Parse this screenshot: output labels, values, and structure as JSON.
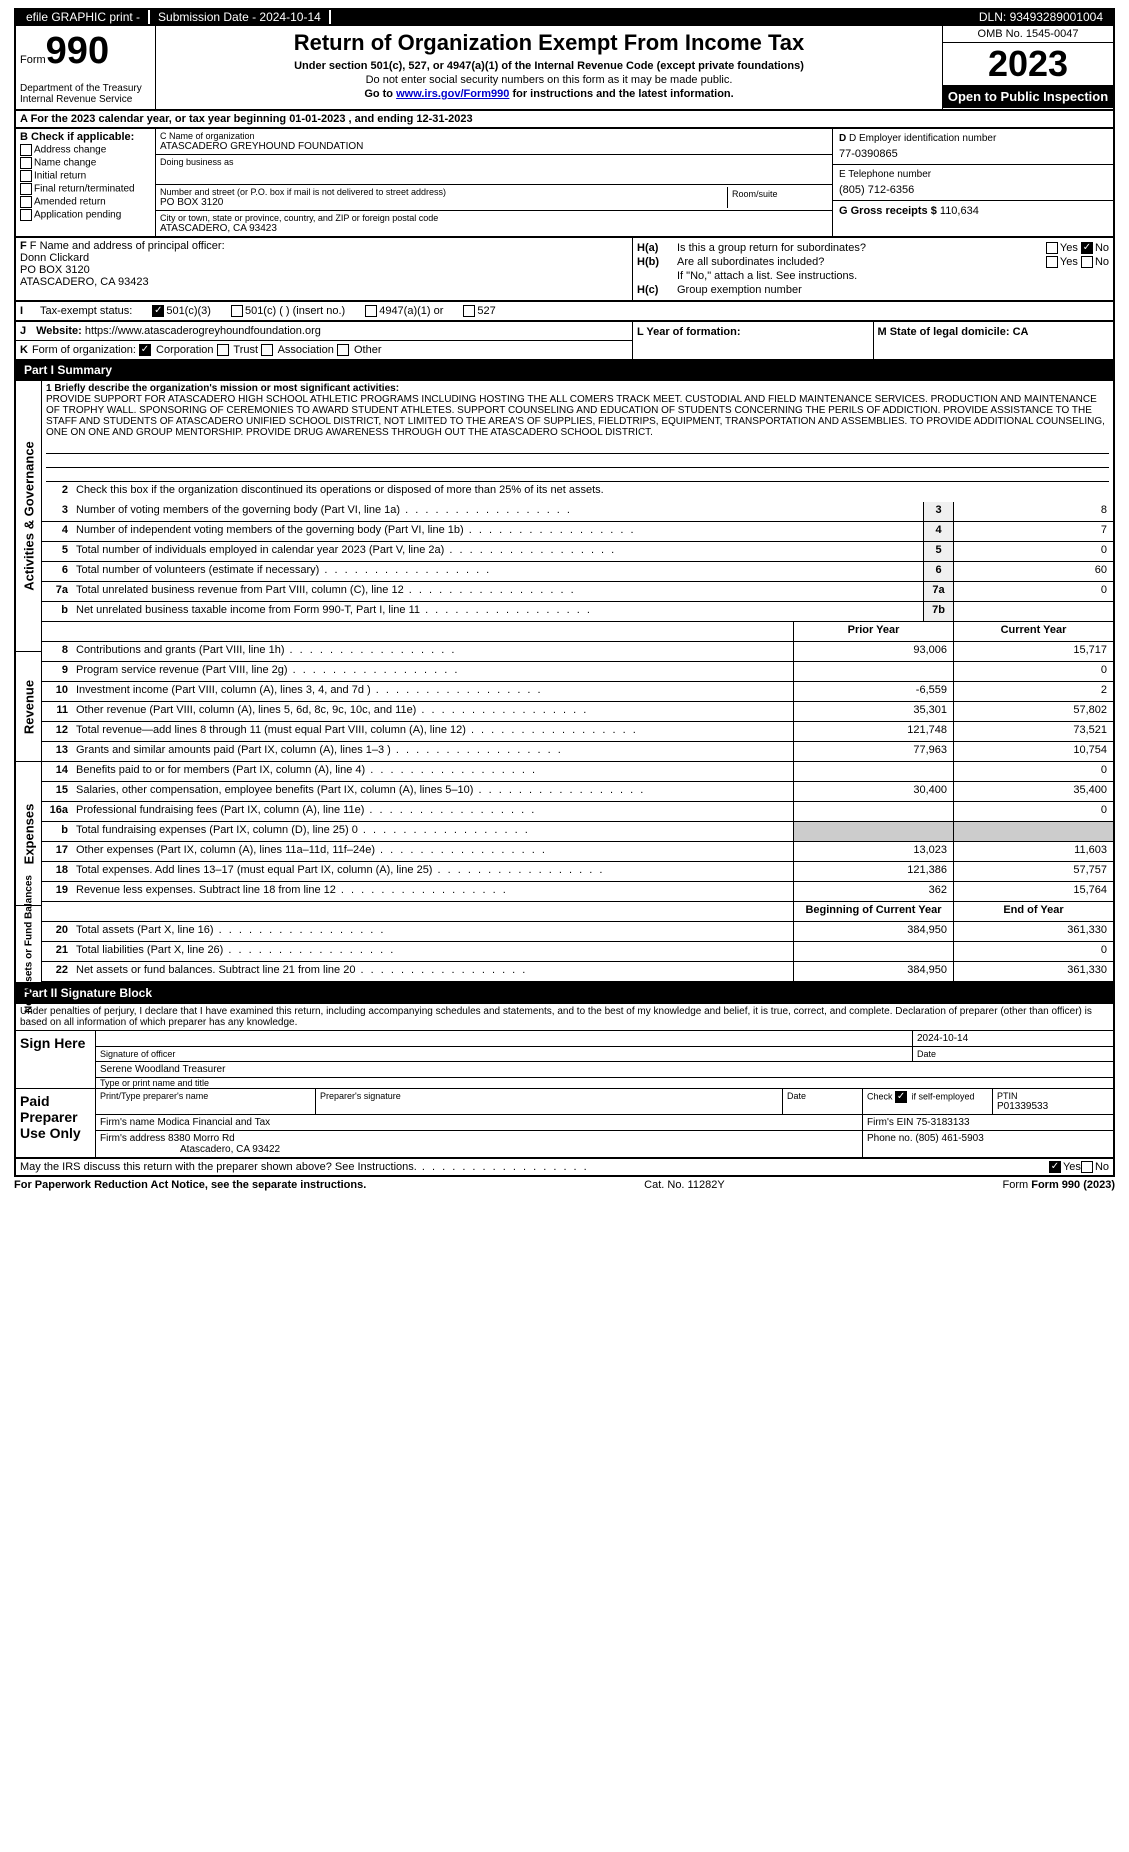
{
  "topbar": {
    "efile": "efile GRAPHIC print -",
    "submission_label": "Submission Date - 2024-10-14",
    "dln_label": "DLN: 93493289001004"
  },
  "header": {
    "form_label": "Form",
    "form_num": "990",
    "dept": "Department of the Treasury\nInternal Revenue Service",
    "title": "Return of Organization Exempt From Income Tax",
    "subtitle": "Under section 501(c), 527, or 4947(a)(1) of the Internal Revenue Code (except private foundations)",
    "warn": "Do not enter social security numbers on this form as it may be made public.",
    "link_pre": "Go to ",
    "link": "www.irs.gov/Form990",
    "link_post": " for instructions and the latest information.",
    "omb": "OMB No. 1545-0047",
    "year": "2023",
    "open": "Open to Public Inspection"
  },
  "row_a": "A For the 2023 calendar year, or tax year beginning 01-01-2023    , and ending 12-31-2023",
  "col_b": {
    "hd": "B Check if applicable:",
    "items": [
      "Address change",
      "Name change",
      "Initial return",
      "Final return/terminated",
      "Amended return",
      "Application pending"
    ]
  },
  "col_c": {
    "name_lbl": "C Name of organization",
    "name": "ATASCADERO GREYHOUND FOUNDATION",
    "dba_lbl": "Doing business as",
    "dba": "",
    "street_lbl": "Number and street (or P.O. box if mail is not delivered to street address)",
    "street": "PO BOX 3120",
    "room_lbl": "Room/suite",
    "city_lbl": "City or town, state or province, country, and ZIP or foreign postal code",
    "city": "ATASCADERO, CA  93423"
  },
  "col_d": {
    "ein_lbl": "D Employer identification number",
    "ein": "77-0390865",
    "tel_lbl": "E Telephone number",
    "tel": "(805) 712-6356",
    "gross_lbl": "G Gross receipts $",
    "gross": "110,634"
  },
  "col_f": {
    "lbl": "F Name and address of principal officer:",
    "name": "Donn Clickard",
    "addr": "PO BOX 3120",
    "city": "ATASCADERO, CA  93423"
  },
  "col_h": {
    "ha_lbl": "H(a)",
    "ha_txt": "Is this a group return for subordinates?",
    "hb_lbl": "H(b)",
    "hb_txt": "Are all subordinates included?",
    "hb_note": "If \"No,\" attach a list. See instructions.",
    "hc_lbl": "H(c)",
    "hc_txt": "Group exemption number",
    "yes": "Yes",
    "no": "No"
  },
  "row_i": {
    "lbl": "I",
    "txt": "Tax-exempt status:",
    "opt1": "501(c)(3)",
    "opt2": "501(c) (  ) (insert no.)",
    "opt3": "4947(a)(1) or",
    "opt4": "527"
  },
  "row_j": {
    "lbl": "J",
    "txt": "Website:",
    "val": "https://www.atascaderogreyhoundfoundation.org"
  },
  "row_k": {
    "lbl": "K",
    "txt": "Form of organization:",
    "opts": [
      "Corporation",
      "Trust",
      "Association",
      "Other"
    ]
  },
  "row_lm": {
    "l_lbl": "L Year of formation:",
    "m_lbl": "M State of legal domicile: CA"
  },
  "part_i": {
    "title": "Part I    Summary",
    "vbar_ag": "Activities & Governance",
    "vbar_rev": "Revenue",
    "vbar_exp": "Expenses",
    "vbar_net": "Net Assets or Fund Balances",
    "line1_lbl": "1  Briefly describe the organization's mission or most significant activities:",
    "mission": "PROVIDE SUPPORT FOR ATASCADERO HIGH SCHOOL ATHLETIC PROGRAMS INCLUDING HOSTING THE ALL COMERS TRACK MEET. CUSTODIAL AND FIELD MAINTENANCE SERVICES. PRODUCTION AND MAINTENANCE OF TROPHY WALL. SPONSORING OF CEREMONIES TO AWARD STUDENT ATHLETES. SUPPORT COUNSELING AND EDUCATION OF STUDENTS CONCERNING THE PERILS OF ADDICTION. PROVIDE ASSISTANCE TO THE STAFF AND STUDENTS OF ATASCADERO UNIFIED SCHOOL DISTRICT, NOT LIMITED TO THE AREA'S OF SUPPLIES, FIELDTRIPS, EQUIPMENT, TRANSPORTATION AND ASSEMBLIES. TO PROVIDE ADDITIONAL COUNSELING, ONE ON ONE AND GROUP MENTORSHIP. PROVIDE DRUG AWARENESS THROUGH OUT THE ATASCADERO SCHOOL DISTRICT.",
    "line2": "Check this box      if the organization discontinued its operations or disposed of more than 25% of its net assets.",
    "ag_lines": [
      {
        "n": "3",
        "d": "Number of voting members of the governing body (Part VI, line 1a)",
        "b": "3",
        "v": "8"
      },
      {
        "n": "4",
        "d": "Number of independent voting members of the governing body (Part VI, line 1b)",
        "b": "4",
        "v": "7"
      },
      {
        "n": "5",
        "d": "Total number of individuals employed in calendar year 2023 (Part V, line 2a)",
        "b": "5",
        "v": "0"
      },
      {
        "n": "6",
        "d": "Total number of volunteers (estimate if necessary)",
        "b": "6",
        "v": "60"
      },
      {
        "n": "7a",
        "d": "Total unrelated business revenue from Part VIII, column (C), line 12",
        "b": "7a",
        "v": "0"
      },
      {
        "n": "b",
        "d": "Net unrelated business taxable income from Form 990-T, Part I, line 11",
        "b": "7b",
        "v": ""
      }
    ],
    "hdr_prior": "Prior Year",
    "hdr_curr": "Current Year",
    "rev_lines": [
      {
        "n": "8",
        "d": "Contributions and grants (Part VIII, line 1h)",
        "p": "93,006",
        "c": "15,717"
      },
      {
        "n": "9",
        "d": "Program service revenue (Part VIII, line 2g)",
        "p": "",
        "c": "0"
      },
      {
        "n": "10",
        "d": "Investment income (Part VIII, column (A), lines 3, 4, and 7d )",
        "p": "-6,559",
        "c": "2"
      },
      {
        "n": "11",
        "d": "Other revenue (Part VIII, column (A), lines 5, 6d, 8c, 9c, 10c, and 11e)",
        "p": "35,301",
        "c": "57,802"
      },
      {
        "n": "12",
        "d": "Total revenue—add lines 8 through 11 (must equal Part VIII, column (A), line 12)",
        "p": "121,748",
        "c": "73,521"
      }
    ],
    "exp_lines": [
      {
        "n": "13",
        "d": "Grants and similar amounts paid (Part IX, column (A), lines 1–3 )",
        "p": "77,963",
        "c": "10,754"
      },
      {
        "n": "14",
        "d": "Benefits paid to or for members (Part IX, column (A), line 4)",
        "p": "",
        "c": "0"
      },
      {
        "n": "15",
        "d": "Salaries, other compensation, employee benefits (Part IX, column (A), lines 5–10)",
        "p": "30,400",
        "c": "35,400"
      },
      {
        "n": "16a",
        "d": "Professional fundraising fees (Part IX, column (A), line 11e)",
        "p": "",
        "c": "0"
      },
      {
        "n": "b",
        "d": "Total fundraising expenses (Part IX, column (D), line 25) 0",
        "p": "SHADED",
        "c": "SHADED"
      },
      {
        "n": "17",
        "d": "Other expenses (Part IX, column (A), lines 11a–11d, 11f–24e)",
        "p": "13,023",
        "c": "11,603"
      },
      {
        "n": "18",
        "d": "Total expenses. Add lines 13–17 (must equal Part IX, column (A), line 25)",
        "p": "121,386",
        "c": "57,757"
      },
      {
        "n": "19",
        "d": "Revenue less expenses. Subtract line 18 from line 12",
        "p": "362",
        "c": "15,764"
      }
    ],
    "hdr_beg": "Beginning of Current Year",
    "hdr_end": "End of Year",
    "net_lines": [
      {
        "n": "20",
        "d": "Total assets (Part X, line 16)",
        "p": "384,950",
        "c": "361,330"
      },
      {
        "n": "21",
        "d": "Total liabilities (Part X, line 26)",
        "p": "",
        "c": "0"
      },
      {
        "n": "22",
        "d": "Net assets or fund balances. Subtract line 21 from line 20",
        "p": "384,950",
        "c": "361,330"
      }
    ]
  },
  "part_ii": {
    "title": "Part II    Signature Block",
    "intro": "Under penalties of perjury, I declare that I have examined this return, including accompanying schedules and statements, and to the best of my knowledge and belief, it is true, correct, and complete. Declaration of preparer (other than officer) is based on all information of which preparer has any knowledge.",
    "sign_here": "Sign Here",
    "sig_officer_lbl": "Signature of officer",
    "sig_date_lbl": "Date",
    "sig_date": "2024-10-14",
    "officer_name": "Serene Woodland Treasurer",
    "officer_type_lbl": "Type or print name and title",
    "paid_prep": "Paid Preparer Use Only",
    "prep_name_lbl": "Print/Type preparer's name",
    "prep_sig_lbl": "Preparer's signature",
    "date_lbl": "Date",
    "check_self": "Check       if self-employed",
    "ptin_lbl": "PTIN",
    "ptin": "P01339533",
    "firm_name_lbl": "Firm's name",
    "firm_name": "Modica Financial and Tax",
    "firm_ein_lbl": "Firm's EIN",
    "firm_ein": "75-3183133",
    "firm_addr_lbl": "Firm's address",
    "firm_addr": "8380 Morro Rd",
    "firm_city": "Atascadero, CA  93422",
    "phone_lbl": "Phone no.",
    "phone": "(805) 461-5903",
    "discuss": "May the IRS discuss this return with the preparer shown above? See Instructions.",
    "yes": "Yes",
    "no": "No"
  },
  "footer": {
    "pra": "For Paperwork Reduction Act Notice, see the separate instructions.",
    "cat": "Cat. No. 11282Y",
    "form": "Form 990 (2023)"
  }
}
